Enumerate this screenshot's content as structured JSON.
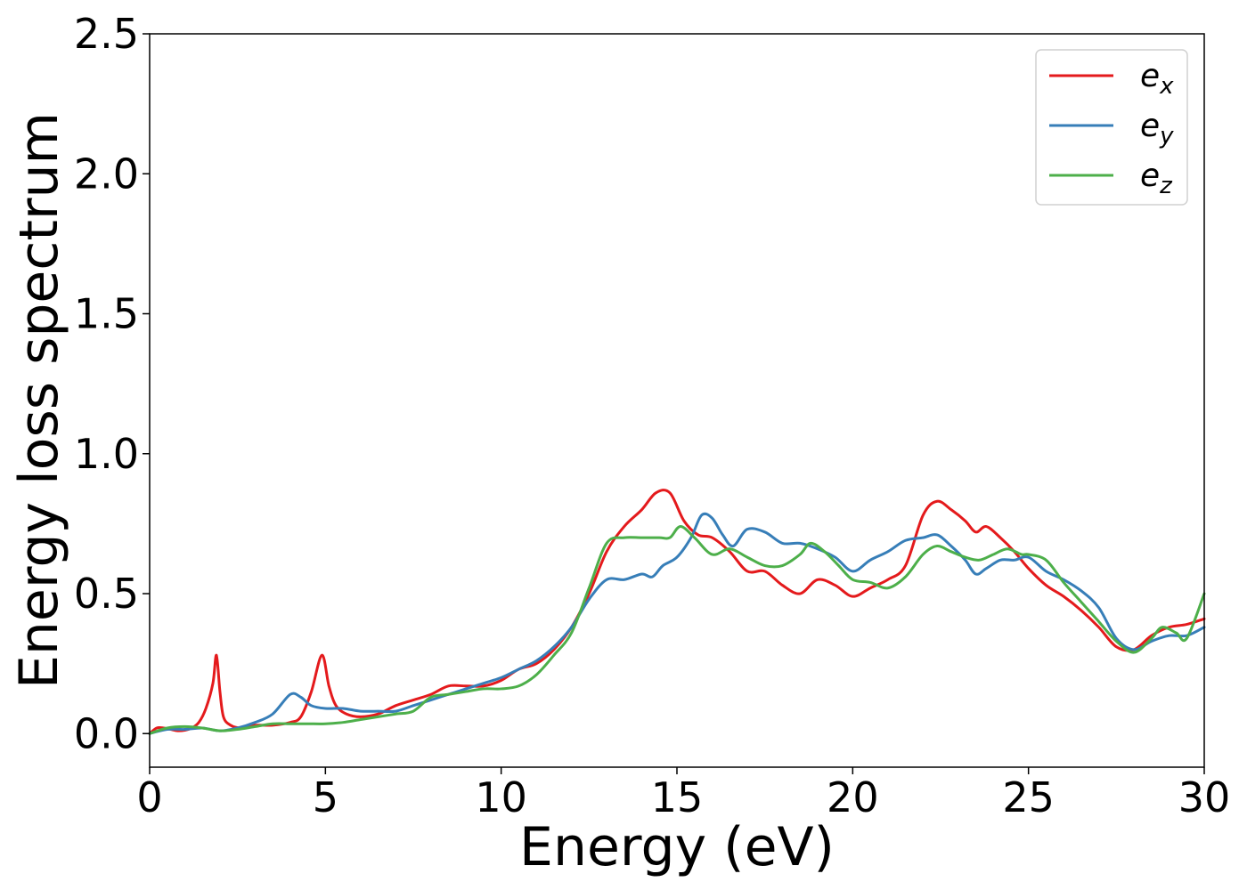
{
  "chart_data": {
    "type": "line",
    "title": "",
    "xlabel": "Energy (eV)",
    "ylabel": "Energy loss spectrum",
    "xlim": [
      0,
      30
    ],
    "ylim": [
      -0.12,
      2.5
    ],
    "xticks": [
      0,
      5,
      10,
      15,
      20,
      25,
      30
    ],
    "xtick_labels": [
      "0",
      "5",
      "10",
      "15",
      "20",
      "25",
      "30"
    ],
    "yticks": [
      0.0,
      0.5,
      1.0,
      1.5,
      2.0,
      2.5
    ],
    "ytick_labels": [
      "0.0",
      "0.5",
      "1.0",
      "1.5",
      "2.0",
      "2.5"
    ],
    "grid": false,
    "legend_position": "top-right",
    "series": [
      {
        "name": "e_x",
        "label_base": "e",
        "label_sub": "x",
        "color": "#e41a1c",
        "points": [
          [
            0,
            0.0
          ],
          [
            0.2,
            0.02
          ],
          [
            0.4,
            0.02
          ],
          [
            0.6,
            0.015
          ],
          [
            0.8,
            0.01
          ],
          [
            1.0,
            0.012
          ],
          [
            1.2,
            0.02
          ],
          [
            1.4,
            0.04
          ],
          [
            1.6,
            0.09
          ],
          [
            1.8,
            0.18
          ],
          [
            1.9,
            0.28
          ],
          [
            2.0,
            0.15
          ],
          [
            2.1,
            0.06
          ],
          [
            2.3,
            0.03
          ],
          [
            2.6,
            0.02
          ],
          [
            3.0,
            0.03
          ],
          [
            3.5,
            0.03
          ],
          [
            4.0,
            0.04
          ],
          [
            4.3,
            0.06
          ],
          [
            4.6,
            0.15
          ],
          [
            4.9,
            0.28
          ],
          [
            5.1,
            0.17
          ],
          [
            5.3,
            0.1
          ],
          [
            5.6,
            0.07
          ],
          [
            6.0,
            0.06
          ],
          [
            6.5,
            0.07
          ],
          [
            7.0,
            0.1
          ],
          [
            7.5,
            0.12
          ],
          [
            8.0,
            0.14
          ],
          [
            8.5,
            0.17
          ],
          [
            9.0,
            0.17
          ],
          [
            9.5,
            0.17
          ],
          [
            10.0,
            0.19
          ],
          [
            10.5,
            0.23
          ],
          [
            11.0,
            0.25
          ],
          [
            11.5,
            0.3
          ],
          [
            12.0,
            0.38
          ],
          [
            12.5,
            0.5
          ],
          [
            13.0,
            0.65
          ],
          [
            13.5,
            0.74
          ],
          [
            14.0,
            0.8
          ],
          [
            14.4,
            0.86
          ],
          [
            14.8,
            0.86
          ],
          [
            15.2,
            0.76
          ],
          [
            15.6,
            0.71
          ],
          [
            16.0,
            0.7
          ],
          [
            16.5,
            0.65
          ],
          [
            17.0,
            0.58
          ],
          [
            17.5,
            0.58
          ],
          [
            18.0,
            0.53
          ],
          [
            18.5,
            0.5
          ],
          [
            19.0,
            0.55
          ],
          [
            19.5,
            0.53
          ],
          [
            20.0,
            0.49
          ],
          [
            20.5,
            0.52
          ],
          [
            21.0,
            0.55
          ],
          [
            21.5,
            0.6
          ],
          [
            22.0,
            0.78
          ],
          [
            22.4,
            0.83
          ],
          [
            22.8,
            0.8
          ],
          [
            23.2,
            0.76
          ],
          [
            23.5,
            0.72
          ],
          [
            23.8,
            0.74
          ],
          [
            24.2,
            0.7
          ],
          [
            24.6,
            0.65
          ],
          [
            25.0,
            0.59
          ],
          [
            25.5,
            0.53
          ],
          [
            26.0,
            0.49
          ],
          [
            26.5,
            0.44
          ],
          [
            27.0,
            0.38
          ],
          [
            27.5,
            0.31
          ],
          [
            28.0,
            0.3
          ],
          [
            28.5,
            0.35
          ],
          [
            29.0,
            0.38
          ],
          [
            29.5,
            0.39
          ],
          [
            30.0,
            0.41
          ]
        ]
      },
      {
        "name": "e_y",
        "label_base": "e",
        "label_sub": "y",
        "color": "#377eb8",
        "points": [
          [
            0,
            0.0
          ],
          [
            0.5,
            0.015
          ],
          [
            1.0,
            0.015
          ],
          [
            1.5,
            0.02
          ],
          [
            2.0,
            0.01
          ],
          [
            2.5,
            0.02
          ],
          [
            3.0,
            0.04
          ],
          [
            3.5,
            0.07
          ],
          [
            4.0,
            0.14
          ],
          [
            4.3,
            0.13
          ],
          [
            4.6,
            0.1
          ],
          [
            5.0,
            0.09
          ],
          [
            5.5,
            0.09
          ],
          [
            6.0,
            0.08
          ],
          [
            6.5,
            0.08
          ],
          [
            7.0,
            0.08
          ],
          [
            7.5,
            0.1
          ],
          [
            8.0,
            0.12
          ],
          [
            8.5,
            0.14
          ],
          [
            9.0,
            0.16
          ],
          [
            9.5,
            0.18
          ],
          [
            10.0,
            0.2
          ],
          [
            10.5,
            0.23
          ],
          [
            11.0,
            0.26
          ],
          [
            11.5,
            0.31
          ],
          [
            12.0,
            0.38
          ],
          [
            12.5,
            0.48
          ],
          [
            13.0,
            0.55
          ],
          [
            13.5,
            0.55
          ],
          [
            14.0,
            0.57
          ],
          [
            14.3,
            0.56
          ],
          [
            14.6,
            0.6
          ],
          [
            15.0,
            0.63
          ],
          [
            15.4,
            0.7
          ],
          [
            15.7,
            0.78
          ],
          [
            16.0,
            0.77
          ],
          [
            16.3,
            0.71
          ],
          [
            16.6,
            0.67
          ],
          [
            17.0,
            0.73
          ],
          [
            17.5,
            0.72
          ],
          [
            18.0,
            0.68
          ],
          [
            18.5,
            0.68
          ],
          [
            19.0,
            0.66
          ],
          [
            19.5,
            0.63
          ],
          [
            20.0,
            0.58
          ],
          [
            20.5,
            0.62
          ],
          [
            21.0,
            0.65
          ],
          [
            21.5,
            0.69
          ],
          [
            22.0,
            0.7
          ],
          [
            22.4,
            0.71
          ],
          [
            22.8,
            0.67
          ],
          [
            23.2,
            0.62
          ],
          [
            23.5,
            0.57
          ],
          [
            23.8,
            0.59
          ],
          [
            24.2,
            0.62
          ],
          [
            24.6,
            0.62
          ],
          [
            25.0,
            0.63
          ],
          [
            25.5,
            0.58
          ],
          [
            26.0,
            0.55
          ],
          [
            26.5,
            0.51
          ],
          [
            27.0,
            0.45
          ],
          [
            27.5,
            0.34
          ],
          [
            28.0,
            0.3
          ],
          [
            28.5,
            0.33
          ],
          [
            29.0,
            0.35
          ],
          [
            29.5,
            0.35
          ],
          [
            30.0,
            0.38
          ]
        ]
      },
      {
        "name": "e_z",
        "label_base": "e",
        "label_sub": "z",
        "color": "#4daf4a",
        "points": [
          [
            0,
            0.0
          ],
          [
            0.5,
            0.02
          ],
          [
            1.0,
            0.025
          ],
          [
            1.5,
            0.02
          ],
          [
            2.0,
            0.01
          ],
          [
            2.5,
            0.015
          ],
          [
            3.0,
            0.025
          ],
          [
            3.5,
            0.035
          ],
          [
            4.0,
            0.035
          ],
          [
            4.5,
            0.035
          ],
          [
            5.0,
            0.035
          ],
          [
            5.5,
            0.04
          ],
          [
            6.0,
            0.05
          ],
          [
            6.5,
            0.06
          ],
          [
            7.0,
            0.07
          ],
          [
            7.5,
            0.08
          ],
          [
            8.0,
            0.13
          ],
          [
            8.5,
            0.14
          ],
          [
            9.0,
            0.15
          ],
          [
            9.5,
            0.16
          ],
          [
            10.0,
            0.16
          ],
          [
            10.5,
            0.17
          ],
          [
            11.0,
            0.21
          ],
          [
            11.5,
            0.28
          ],
          [
            12.0,
            0.36
          ],
          [
            12.5,
            0.52
          ],
          [
            13.0,
            0.68
          ],
          [
            13.5,
            0.7
          ],
          [
            14.0,
            0.7
          ],
          [
            14.5,
            0.7
          ],
          [
            14.8,
            0.7
          ],
          [
            15.1,
            0.74
          ],
          [
            15.5,
            0.7
          ],
          [
            16.0,
            0.64
          ],
          [
            16.5,
            0.66
          ],
          [
            17.0,
            0.63
          ],
          [
            17.5,
            0.6
          ],
          [
            18.0,
            0.6
          ],
          [
            18.5,
            0.64
          ],
          [
            18.8,
            0.68
          ],
          [
            19.2,
            0.65
          ],
          [
            19.6,
            0.6
          ],
          [
            20.0,
            0.55
          ],
          [
            20.5,
            0.54
          ],
          [
            21.0,
            0.52
          ],
          [
            21.5,
            0.56
          ],
          [
            22.0,
            0.64
          ],
          [
            22.4,
            0.67
          ],
          [
            22.8,
            0.65
          ],
          [
            23.2,
            0.63
          ],
          [
            23.6,
            0.62
          ],
          [
            24.0,
            0.64
          ],
          [
            24.4,
            0.66
          ],
          [
            24.8,
            0.64
          ],
          [
            25.0,
            0.64
          ],
          [
            25.5,
            0.62
          ],
          [
            26.0,
            0.54
          ],
          [
            26.5,
            0.47
          ],
          [
            27.0,
            0.4
          ],
          [
            27.5,
            0.33
          ],
          [
            28.0,
            0.29
          ],
          [
            28.5,
            0.34
          ],
          [
            28.8,
            0.38
          ],
          [
            29.2,
            0.36
          ],
          [
            29.5,
            0.34
          ],
          [
            30.0,
            0.5
          ]
        ]
      }
    ]
  }
}
